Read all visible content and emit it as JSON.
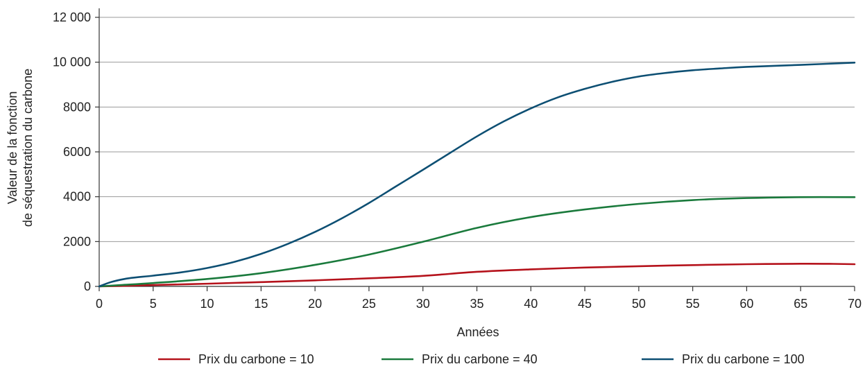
{
  "chart_data": {
    "type": "line",
    "title": "",
    "xlabel": "Années",
    "ylabel_lines": [
      "Valeur de la fonction",
      "de séquestration du carbone"
    ],
    "xlim": [
      0,
      70
    ],
    "ylim": [
      0,
      12000
    ],
    "x_ticks": [
      0,
      5,
      10,
      15,
      20,
      25,
      30,
      35,
      40,
      45,
      50,
      55,
      60,
      65,
      70
    ],
    "x_tick_labels": [
      "0",
      "5",
      "10",
      "15",
      "20",
      "25",
      "30",
      "35",
      "40",
      "45",
      "50",
      "55",
      "60",
      "65",
      "70"
    ],
    "y_ticks": [
      0,
      2000,
      4000,
      6000,
      8000,
      10000,
      12000
    ],
    "y_tick_labels": [
      "0",
      "2000",
      "4000",
      "6000",
      "8000",
      "10 000",
      "12 000"
    ],
    "grid": "horizontal",
    "legend_position": "bottom",
    "series": [
      {
        "name": "Prix du carbone = 10",
        "color": "#b5121b",
        "x": [
          0,
          2,
          5,
          10,
          15,
          20,
          25,
          30,
          35,
          40,
          45,
          50,
          55,
          60,
          65,
          68,
          70
        ],
        "y": [
          0,
          20,
          60,
          120,
          190,
          270,
          360,
          470,
          650,
          760,
          840,
          900,
          950,
          990,
          1010,
          1005,
          990
        ]
      },
      {
        "name": "Prix du carbone = 40",
        "color": "#1a7a3c",
        "x": [
          0,
          2,
          5,
          10,
          15,
          20,
          25,
          30,
          35,
          40,
          45,
          50,
          55,
          60,
          65,
          70
        ],
        "y": [
          0,
          60,
          150,
          330,
          590,
          960,
          1420,
          1990,
          2610,
          3090,
          3430,
          3680,
          3850,
          3940,
          3980,
          3980
        ]
      },
      {
        "name": "Prix du carbone = 100",
        "color": "#0d4f73",
        "x": [
          0,
          1,
          2,
          3,
          5,
          7.5,
          10,
          12.5,
          15,
          17.5,
          20,
          22.5,
          25,
          27.5,
          30,
          32.5,
          35,
          37.5,
          40,
          42.5,
          45,
          47.5,
          50,
          52.5,
          55,
          57.5,
          60,
          65,
          70
        ],
        "y": [
          0,
          180,
          300,
          380,
          480,
          620,
          820,
          1090,
          1450,
          1900,
          2430,
          3040,
          3720,
          4460,
          5200,
          5950,
          6690,
          7360,
          7940,
          8430,
          8810,
          9120,
          9360,
          9520,
          9640,
          9720,
          9790,
          9880,
          9980
        ]
      }
    ]
  }
}
